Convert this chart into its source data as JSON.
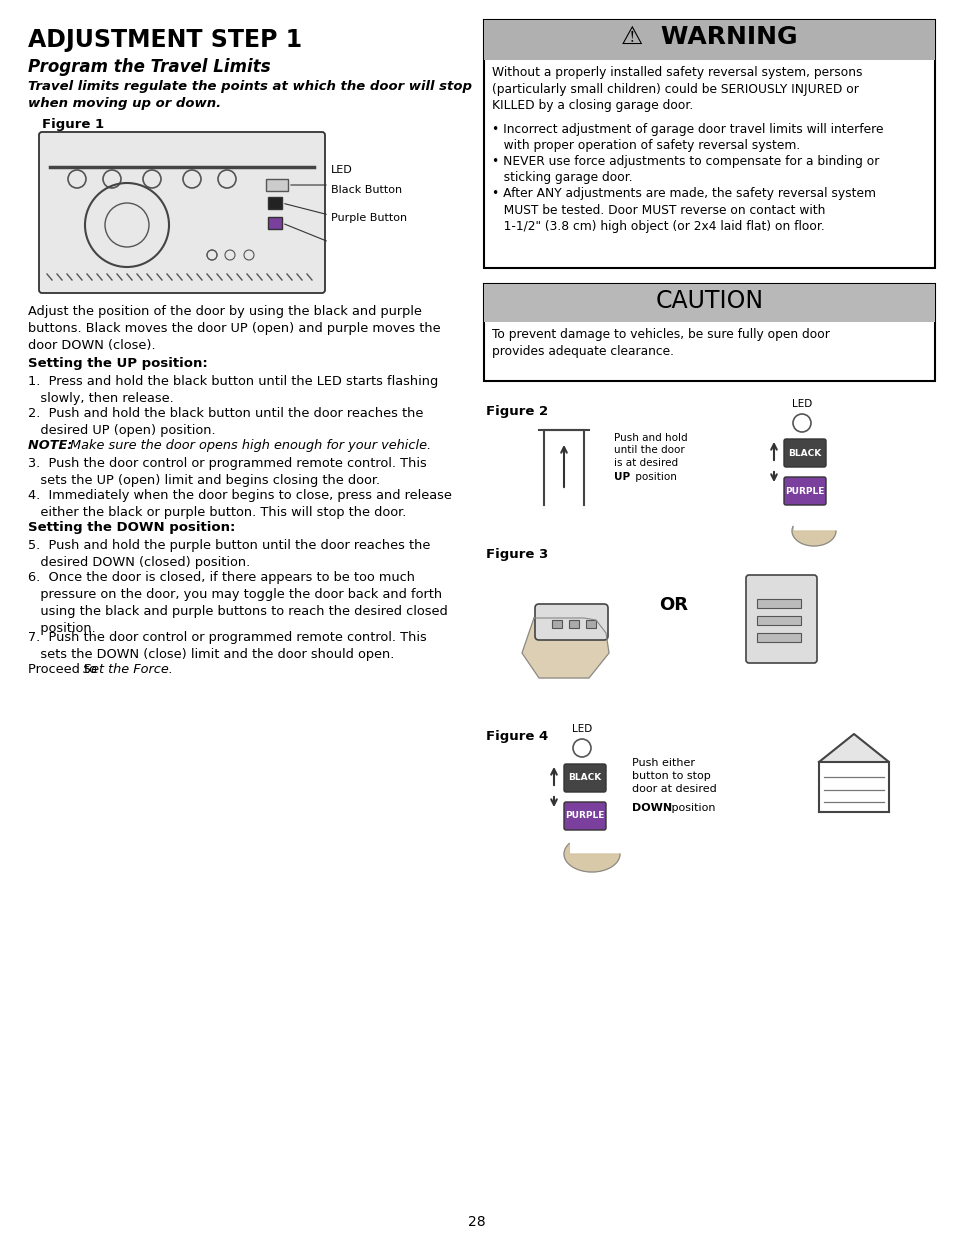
{
  "page_bg": "#ffffff",
  "title_main": "ADJUSTMENT STEP 1",
  "title_sub": "Program the Travel Limits",
  "intro_italic": "Travel limits regulate the points at which the door will stop\nwhen moving up or down.",
  "figure1_label": "Figure 1",
  "body_intro": "Adjust the position of the door by using the black and purple\nbuttons. Black moves the door UP (open) and purple moves the\ndoor DOWN (close).",
  "setting_up_header": "Setting the UP position:",
  "step1": "Press and hold the black button until the LED starts flashing\n   slowly, then release.",
  "step2": "Push and hold the black button until the door reaches the\n   desired UP (open) position.",
  "note_text": "NOTE: Make sure the door opens high enough for your vehicle.",
  "step3": "Push the door control or programmed remote control. This\n   sets the UP (open) limit and begins closing the door.",
  "step4": "Immediately when the door begins to close, press and release\n   either the black or purple button. This will stop the door.",
  "setting_down_header": "Setting the DOWN position:",
  "step5": "Push and hold the purple button until the door reaches the\n   desired DOWN (closed) position.",
  "step6": "Once the door is closed, if there appears to be too much\n   pressure on the door, you may toggle the door back and forth\n   using the black and purple buttons to reach the desired closed\n   position.",
  "step7": "Push the door control or programmed remote control. This\n   sets the DOWN (close) limit and the door should open.",
  "proceed_normal": "Proceed to ",
  "proceed_italic": "Set the Force.",
  "figure2_label": "Figure 2",
  "figure3_label": "Figure 3",
  "figure4_label": "Figure 4",
  "fig2_push_text": "Push and hold\nuntil the door\nis at desired ",
  "fig2_up_bold": "UP",
  "fig2_position": " position",
  "warning_title": "⚠  WARNING",
  "warning_intro": "Without a properly installed safety reversal system, persons\n(particularly small children) could be SERIOUSLY INJURED or\nKILLED by a closing garage door.",
  "warning_b1": "Incorrect adjustment of garage door travel limits will interfere\n   with proper operation of safety reversal system.",
  "warning_b2": "NEVER use force adjustments to compensate for a binding or\n   sticking garage door.",
  "warning_b3": "After ANY adjustments are made, the safety reversal system\n   MUST be tested. Door MUST reverse on contact with\n   1-1/2\" (3.8 cm) high object (or 2x4 laid flat) on floor.",
  "caution_title": "CAUTION",
  "caution_body": "To prevent damage to vehicles, be sure fully open door\nprovides adequate clearance.",
  "fig4_push_text": "Push either\nbutton to stop\ndoor at desired\n",
  "fig4_down_bold": "DOWN",
  "fig4_position": " position",
  "page_number": "28",
  "warn_hdr_bg": "#b0b0b0",
  "caut_hdr_bg": "#b8b8b8"
}
